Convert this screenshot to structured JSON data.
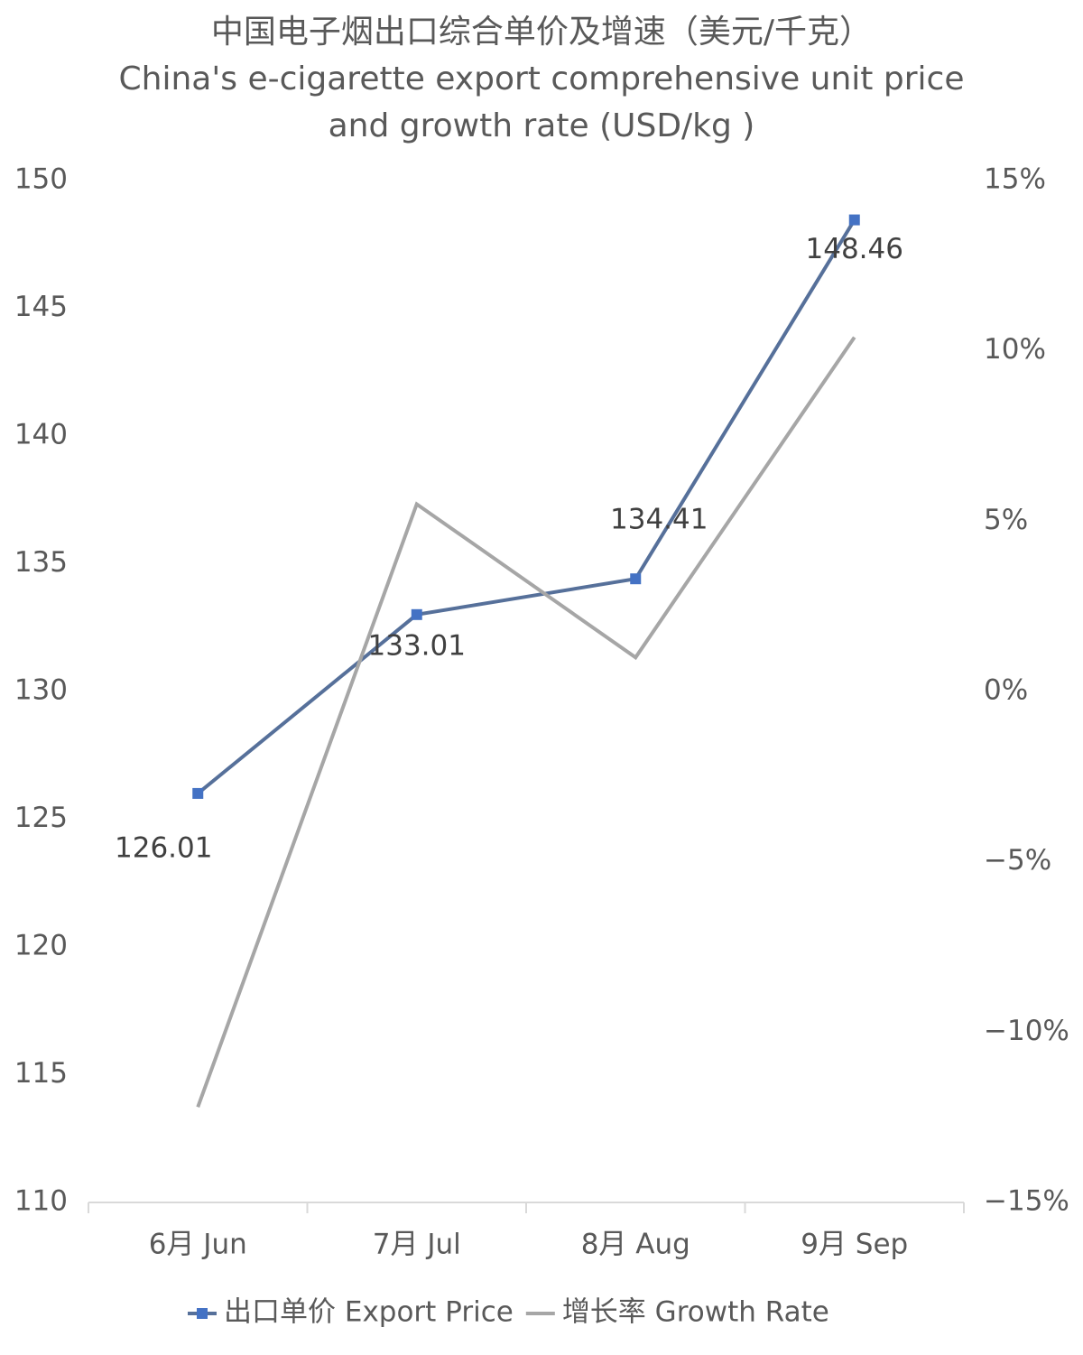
{
  "chart_data": {
    "type": "line",
    "title": "中国电子烟出口综合单价及增速（美元/千克）",
    "subtitle": "China's e-cigarette export comprehensive unit price and growth rate (USD/kg )",
    "categories": [
      "6月 Jun",
      "7月 Jul",
      "8月 Aug",
      "9月 Sep"
    ],
    "series": [
      {
        "name": "出口单价 Export Price",
        "color": "#56709a",
        "marker_color": "#4472c4",
        "values": [
          126.01,
          133.01,
          134.41,
          148.46
        ]
      },
      {
        "name": "增长率 Growth Rate",
        "color": "#a6a6a6",
        "axis": "y2",
        "values": [
          -12.2,
          5.5,
          1.0,
          10.4
        ]
      }
    ],
    "ylim": [
      110,
      150
    ],
    "yticks": [
      110,
      115,
      120,
      125,
      130,
      135,
      140,
      145,
      150
    ],
    "y2lim": [
      -15,
      15
    ],
    "y2ticks": [
      {
        "value": -15,
        "label": "−15%"
      },
      {
        "value": -10,
        "label": "−10%"
      },
      {
        "value": -5,
        "label": "−5%"
      },
      {
        "value": 0,
        "label": "0%"
      },
      {
        "value": 5,
        "label": "5%"
      },
      {
        "value": 10,
        "label": "10%"
      },
      {
        "value": 15,
        "label": "15%"
      }
    ],
    "legend": "bottom"
  }
}
